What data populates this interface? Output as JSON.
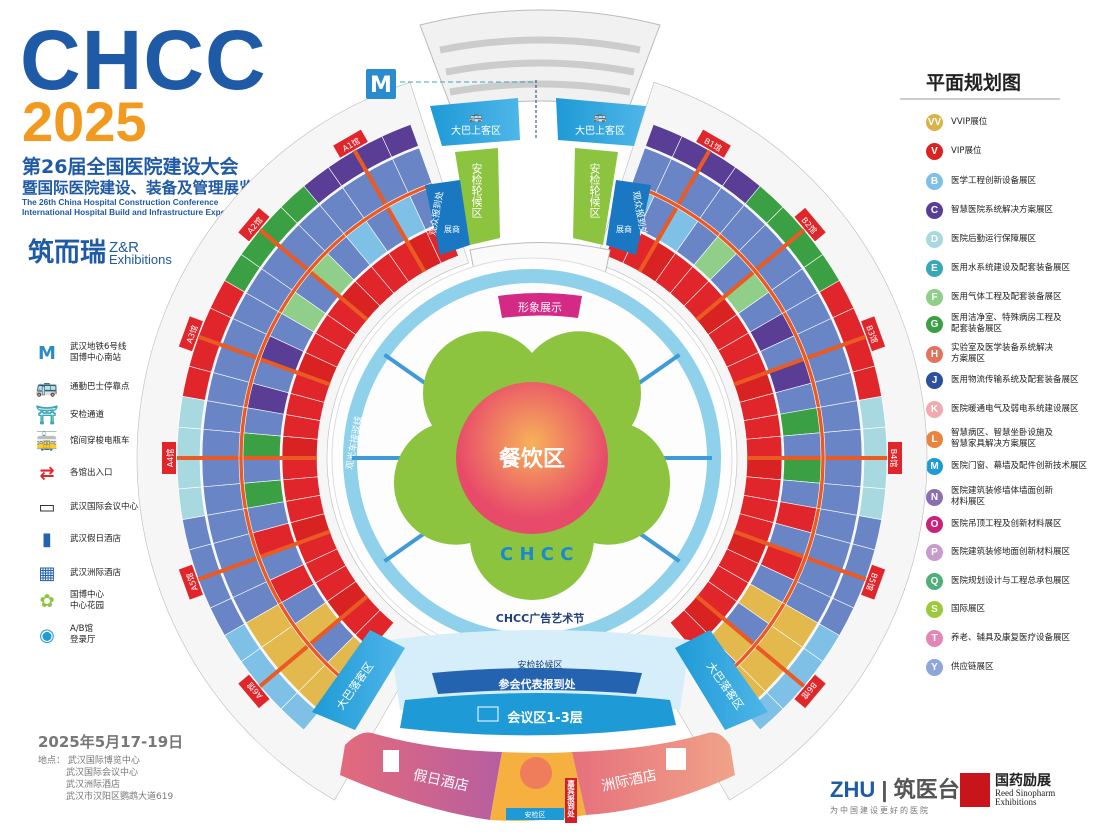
{
  "header": {
    "brand": "CHCC",
    "year": "2025",
    "title_cn_1": "第26届全国医院建设大会",
    "title_cn_2": "暨国际医院建设、装备及管理展览会",
    "title_en_1": "The 26th China Hospital Construction Conference",
    "title_en_2": "International Hospital Build and Infrastructure Exposition",
    "organizer_cn": "筑而瑞",
    "organizer_en_1": "Z&R",
    "organizer_en_2": "Exhibitions"
  },
  "left_legend": [
    {
      "icon": "metro-icon",
      "label": "武汉地铁6号线\n国博中心南站"
    },
    {
      "icon": "bus-icon",
      "label": "通勤巴士停靠点"
    },
    {
      "icon": "security-gate-icon",
      "label": "安检通道"
    },
    {
      "icon": "shuttle-cart-icon",
      "label": "馆间穿梭电瓶车"
    },
    {
      "icon": "entrance-exit-icon",
      "label": "各馆出入口"
    },
    {
      "icon": "conference-center-icon",
      "label": "武汉国际会议中心"
    },
    {
      "icon": "holiday-inn-icon",
      "label": "武汉假日酒店"
    },
    {
      "icon": "intercontinental-icon",
      "label": "武汉洲际酒店"
    },
    {
      "icon": "garden-icon",
      "label": "国博中心\n中心花园"
    },
    {
      "icon": "registration-hall-icon",
      "label": "A/B馆\n登录厅"
    }
  ],
  "right_legend": {
    "title": "平面规划图",
    "items": [
      {
        "badge": "VV",
        "label": "VVIP展位",
        "color": "#d9b24a"
      },
      {
        "badge": "V",
        "label": "VIP展位",
        "color": "#d92323"
      },
      {
        "badge": "B",
        "label": "医学工程创新设备展区",
        "color": "#7fc0e6"
      },
      {
        "badge": "C",
        "label": "智慧医院系统解决方案展区",
        "color": "#5a3d94"
      },
      {
        "badge": "D",
        "label": "医院后勤运行保障展区",
        "color": "#a9d9e0"
      },
      {
        "badge": "E",
        "label": "医用水系统建设及配套装备展区",
        "color": "#3aa7b8"
      },
      {
        "badge": "F",
        "label": "医用气体工程及配套装备展区",
        "color": "#8fcf8a"
      },
      {
        "badge": "G",
        "label": "医用洁净室、特殊病房工程及\n配套装备展区",
        "color": "#3aa043"
      },
      {
        "badge": "H",
        "label": "实验室及医学装备系统解决\n方案展区",
        "color": "#e4735e"
      },
      {
        "badge": "J",
        "label": "医用物流传输系统及配套装备展区",
        "color": "#2d4fa0"
      },
      {
        "badge": "K",
        "label": "医院暖通电气及弱电系统建设展区",
        "color": "#f1aab0"
      },
      {
        "badge": "L",
        "label": "智慧病区、智慧坐卧设施及\n智慧家具解决方案展区",
        "color": "#e8843f"
      },
      {
        "badge": "M",
        "label": "医院门窗、幕墙及配件创新技术展区",
        "color": "#1e9ad6"
      },
      {
        "badge": "N",
        "label": "医院建筑装修墙体墙面创新\n材料展区",
        "color": "#8c6fb0"
      },
      {
        "badge": "O",
        "label": "医院吊顶工程及创新材料展区",
        "color": "#c8237a"
      },
      {
        "badge": "P",
        "label": "医院建筑装修地面创新材料展区",
        "color": "#c79bcb"
      },
      {
        "badge": "Q",
        "label": "医院规划设计与工程总承包展区",
        "color": "#4fae7a"
      },
      {
        "badge": "S",
        "label": "国际展区",
        "color": "#9cc93c"
      },
      {
        "badge": "T",
        "label": "养老、辅具及康复医疗设备展区",
        "color": "#e486b5"
      },
      {
        "badge": "Y",
        "label": "供应链展区",
        "color": "#8ea6d8"
      }
    ]
  },
  "map": {
    "halls_left": [
      "A1馆",
      "A2馆",
      "A3馆",
      "A4馆",
      "A5馆",
      "A6馆"
    ],
    "halls_right": [
      "B1馆",
      "B2馆",
      "B3馆",
      "B4馆",
      "B5馆",
      "B6馆"
    ],
    "center": "餐饮区",
    "image_display": "形象展示",
    "bus_pickup": "大巴上客区",
    "bus_dropoff": "大巴落客区",
    "security_queue": "安检轮候区",
    "visitor_registration": "观众报到处",
    "exhibitor_registration": "展商",
    "shuttle_line": "观光车接驳线",
    "ad_festival": "CHCC广告艺术节",
    "delegate_registration": "参会代表报到处",
    "conference": "会议区1-3层",
    "holiday_inn": "假日酒店",
    "intercontinental": "洲际酒店",
    "security_area": "安检区",
    "guest_registration": "嘉宾报到处"
  },
  "footer": {
    "date": "2025年5月17-19日",
    "venue_label": "地点：",
    "venues": [
      "武汉国际博览中心",
      "武汉国际会议中心",
      "武汉洲际酒店",
      "武汉市汉阳区鹦鹉大道619"
    ],
    "sponsor_1": "ZHU",
    "sponsor_1_cn": "筑医台",
    "sponsor_1_slogan": "为中国建设更好的医院",
    "sponsor_2_cn": "国药励展",
    "sponsor_2_en_1": "Reed Sinopharm",
    "sponsor_2_en_2": "Exhibitions"
  },
  "colors": {
    "brand_blue": "#1f5aa6",
    "brand_orange": "#f29a1f",
    "hall_red": "#e0262b",
    "aisle_orange": "#ea5a22",
    "hall_blue": "#6a85c6",
    "ring_blue": "#8fd0ea",
    "garden_green": "#8cc43f"
  }
}
